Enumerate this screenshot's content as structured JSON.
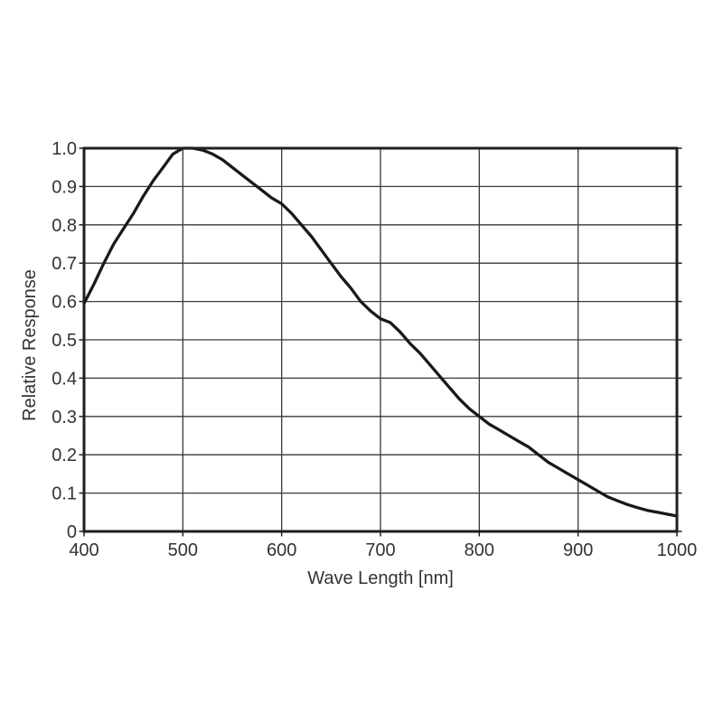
{
  "page": {
    "background": "#ffffff"
  },
  "style": {
    "frame_color": "#1f1f1f",
    "grid_color": "#3a3a3a",
    "curve_color": "#191919",
    "text_color": "#333333"
  },
  "chart_data": {
    "type": "line",
    "title": "",
    "xlabel": "Wave Length [nm]",
    "ylabel": "Relative Response",
    "xlim": [
      400,
      1000
    ],
    "ylim": [
      0,
      1.0
    ],
    "x_ticks": [
      400,
      500,
      600,
      700,
      800,
      900,
      1000
    ],
    "y_ticks": [
      0,
      0.1,
      0.2,
      0.3,
      0.4,
      0.5,
      0.6,
      0.7,
      0.8,
      0.9,
      1.0
    ],
    "grid": true,
    "legend_position": "none",
    "series": [
      {
        "name": "relative-response",
        "color": "#191919",
        "x": [
          400,
          410,
          420,
          430,
          440,
          450,
          460,
          470,
          480,
          490,
          500,
          510,
          520,
          530,
          540,
          550,
          560,
          570,
          580,
          590,
          600,
          610,
          620,
          630,
          640,
          650,
          660,
          670,
          680,
          690,
          700,
          710,
          720,
          730,
          740,
          750,
          760,
          770,
          780,
          790,
          800,
          810,
          820,
          830,
          840,
          850,
          860,
          870,
          880,
          890,
          900,
          910,
          920,
          930,
          940,
          950,
          960,
          970,
          980,
          990,
          1000
        ],
        "values": [
          0.595,
          0.645,
          0.7,
          0.75,
          0.79,
          0.83,
          0.875,
          0.915,
          0.95,
          0.985,
          1.0,
          1.0,
          0.995,
          0.985,
          0.97,
          0.95,
          0.93,
          0.91,
          0.89,
          0.87,
          0.855,
          0.83,
          0.8,
          0.77,
          0.735,
          0.7,
          0.665,
          0.635,
          0.6,
          0.575,
          0.555,
          0.545,
          0.52,
          0.49,
          0.465,
          0.435,
          0.405,
          0.375,
          0.345,
          0.32,
          0.3,
          0.28,
          0.265,
          0.25,
          0.235,
          0.22,
          0.2,
          0.18,
          0.165,
          0.15,
          0.135,
          0.12,
          0.105,
          0.09,
          0.08,
          0.07,
          0.062,
          0.055,
          0.05,
          0.045,
          0.04
        ]
      }
    ]
  }
}
